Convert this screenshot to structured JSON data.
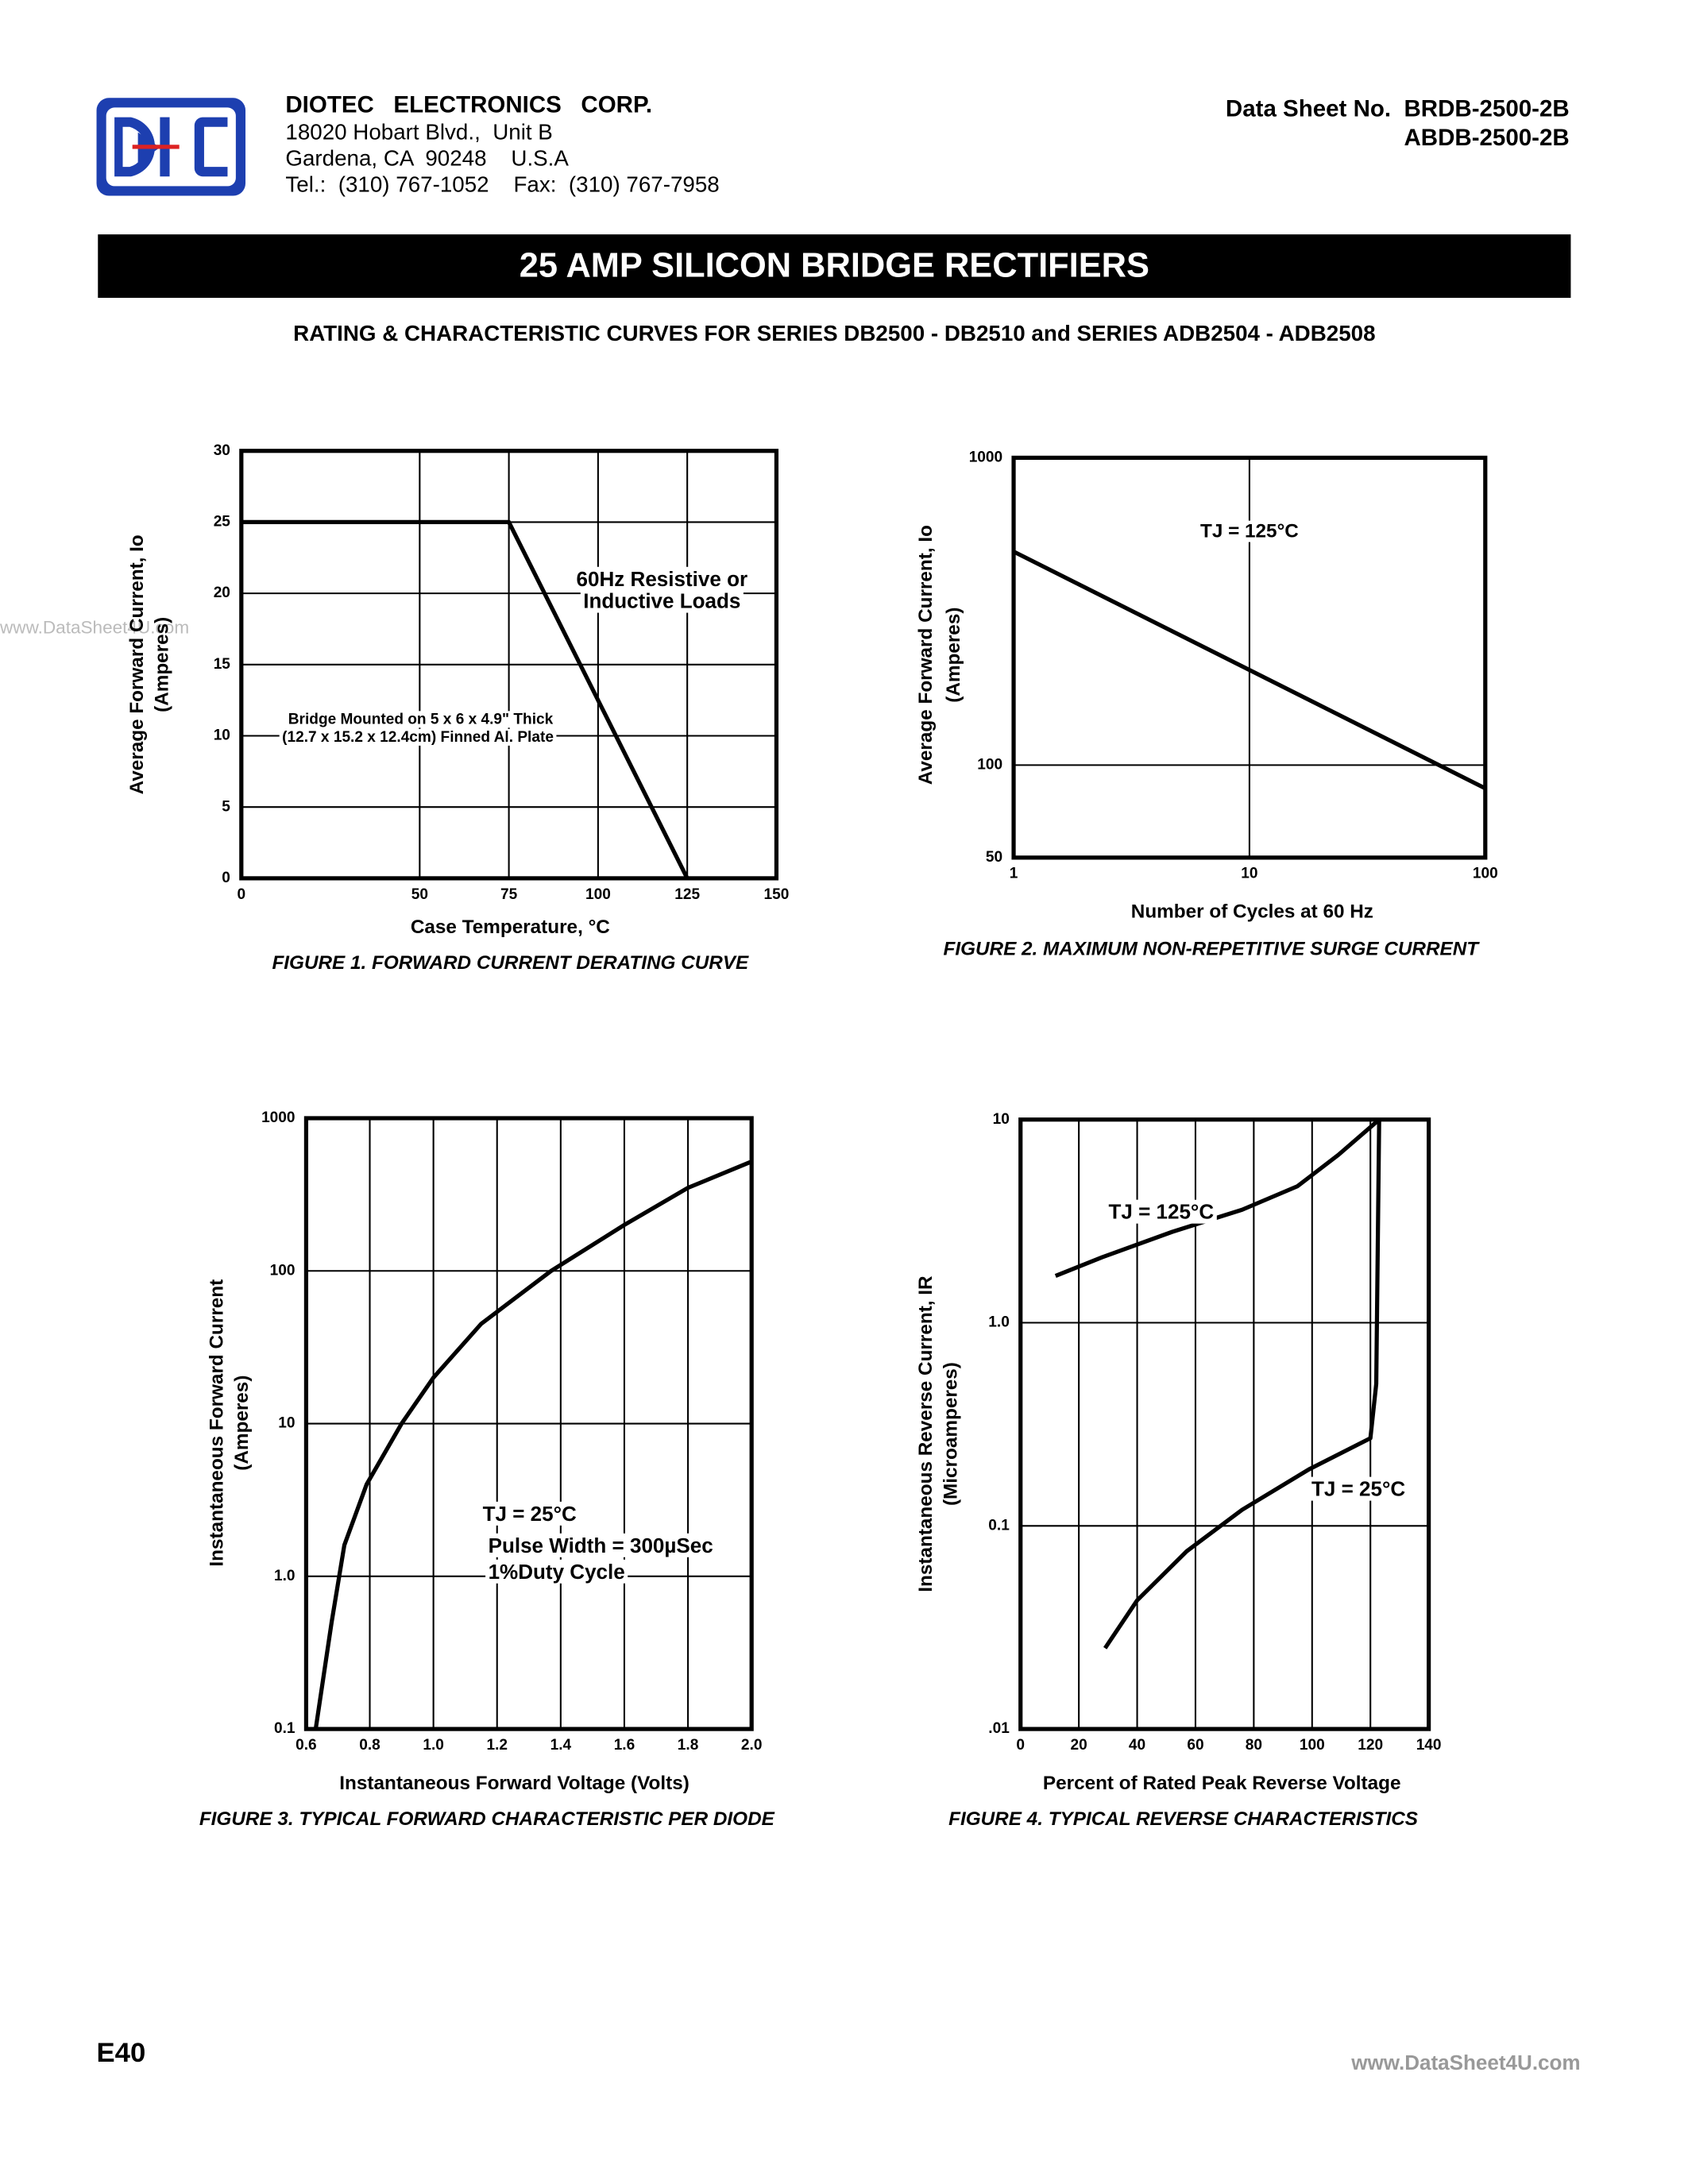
{
  "header": {
    "company": "DIOTEC   ELECTRONICS   CORP.",
    "address": [
      "18020 Hobart Blvd.,  Unit B",
      "Gardena, CA  90248    U.S.A",
      "Tel.:  (310) 767-1052    Fax:  (310) 767-7958"
    ],
    "datasheet": [
      "Data Sheet No.  BRDB-2500-2B",
      "ABDB-2500-2B"
    ]
  },
  "banner": "25 AMP SILICON BRIDGE RECTIFIERS",
  "subtitle": "RATING & CHARACTERISTIC CURVES FOR SERIES DB2500 - DB2510 and SERIES ADB2504 - ADB2508",
  "watermark": "www.DataSheet4U.com",
  "chart_data": [
    {
      "type": "line",
      "caption": "FIGURE 1.  FORWARD CURRENT DERATING CURVE",
      "x_label": "Case  Temperature, °C",
      "y_label": [
        "Average Forward Current, Io",
        "(Amperes)"
      ],
      "annotations": [
        "60Hz Resistive or",
        "Inductive Loads",
        "Bridge Mounted on 5 x 6 x 4.9\" Thick",
        "(12.7 x 15.2 x 12.4cm) Finned Al. Plate"
      ],
      "x": [
        0,
        75,
        125
      ],
      "values": [
        25,
        25,
        0
      ],
      "color": "#000000",
      "xlim": [
        0,
        150
      ],
      "xticks": [
        0,
        50,
        75,
        100,
        125,
        150
      ],
      "ylim": [
        0,
        30
      ],
      "yticks": [
        0,
        5,
        10,
        15,
        20,
        25,
        30
      ],
      "grid": true
    },
    {
      "type": "line",
      "caption": "FIGURE 2.  MAXIMUM NON-REPETITIVE SURGE CURRENT",
      "x_label": "Number of Cycles at 60 Hz",
      "y_label": [
        "Average Forward Current, Io",
        "(Amperes)"
      ],
      "annotations": [
        "TJ = 125°C"
      ],
      "x": [
        1,
        100
      ],
      "values": [
        495,
        84
      ],
      "color": "#000000",
      "xlim": [
        1,
        100
      ],
      "xticks": [
        1,
        10,
        100
      ],
      "x_log": true,
      "ylim": [
        50,
        1000
      ],
      "yticks": [
        50,
        100,
        1000
      ],
      "y_log": true,
      "grid": true
    },
    {
      "type": "line",
      "caption": "FIGURE 3.  TYPICAL FORWARD CHARACTERISTIC PER DIODE",
      "x_label": "Instantaneous Forward Voltage (Volts)",
      "y_label": [
        "Instantaneous Forward Current",
        "(Amperes)"
      ],
      "annotations": [
        "TJ = 25°C",
        "Pulse Width = 300µSec",
        "1%Duty Cycle"
      ],
      "x": [
        0.63,
        0.68,
        0.72,
        0.79,
        0.9,
        1.0,
        1.15,
        1.37,
        1.6,
        1.8,
        2.0
      ],
      "values": [
        0.1,
        0.5,
        1.6,
        4,
        10,
        20,
        45,
        100,
        200,
        350,
        520
      ],
      "color": "#000000",
      "xlim": [
        0.6,
        2.0
      ],
      "xticks": [
        0.6,
        0.8,
        {
          "value": 1,
          "label": "1.0"
        },
        1.2,
        1.4,
        1.6,
        1.8,
        {
          "value": 2,
          "label": "2.0"
        }
      ],
      "ylim": [
        0.1,
        1000
      ],
      "yticks": [
        0.1,
        {
          "value": 1,
          "label": "1.0"
        },
        10,
        100,
        1000
      ],
      "y_log": true,
      "grid": true
    },
    {
      "type": "line",
      "caption": "FIGURE 4.  TYPICAL REVERSE CHARACTERISTICS",
      "x_label": "Percent of Rated Peak Reverse Voltage",
      "y_label": [
        "Instantaneous Reverse Current, IR",
        "(Microamperes)"
      ],
      "series": [
        {
          "name": "TJ = 125°C",
          "color": "#000000",
          "x": [
            12,
            28,
            52,
            76,
            95,
            109,
            123
          ],
          "values": [
            1.7,
            2.1,
            2.8,
            3.6,
            4.7,
            6.7,
            10
          ]
        },
        {
          "name": "TJ = 25°C",
          "color": "#000000",
          "x": [
            29,
            40,
            57,
            76,
            99,
            120,
            122,
            123
          ],
          "values": [
            0.025,
            0.043,
            0.075,
            0.12,
            0.19,
            0.27,
            0.5,
            10
          ]
        }
      ],
      "xlim": [
        0,
        140
      ],
      "xticks": [
        0,
        20,
        40,
        60,
        80,
        100,
        120,
        140
      ],
      "ylim": [
        0.01,
        10
      ],
      "yticks": [
        {
          "value": 0.01,
          "label": ".01"
        },
        0.1,
        {
          "value": 1,
          "label": "1.0"
        },
        10
      ],
      "y_log": true,
      "grid": true
    }
  ],
  "footer": {
    "page": "E40",
    "site": "www.DataSheet4U.com"
  }
}
